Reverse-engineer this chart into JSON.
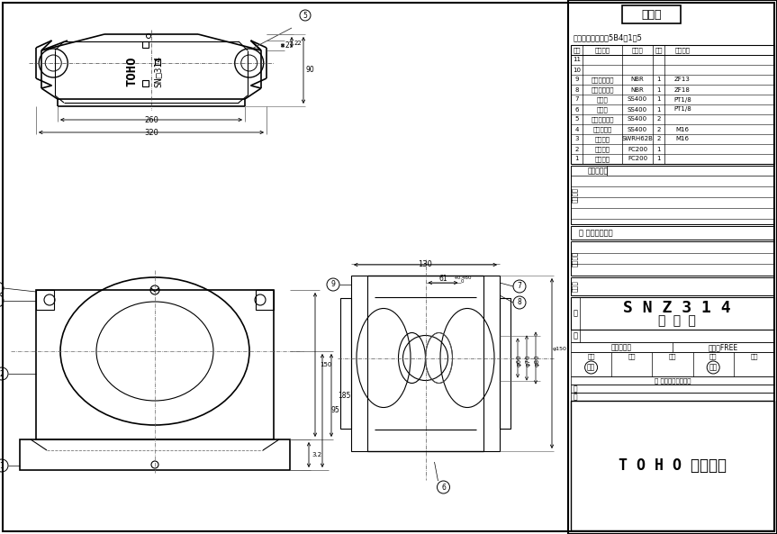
{
  "bg_color": "#ffffff",
  "line_color": "#000000",
  "ref_label": "参考図",
  "paint_color": "塗装色：マンセル5B4／1．5",
  "title_name": "SNZ314",
  "title_sub": "自由側",
  "company": "TOHO株式会社",
  "company_display": "T O H O 株式会社",
  "parts_rows": [
    [
      "11",
      "",
      "",
      "",
      ""
    ],
    [
      "10",
      "",
      "",
      "",
      ""
    ],
    [
      "9",
      "オイルシール",
      "NBR",
      "1",
      "ZF13"
    ],
    [
      "8",
      "オイルシール",
      "NBR",
      "1",
      "ZF18"
    ],
    [
      "7",
      "給油栅",
      "SS400",
      "1",
      "PT1/8"
    ],
    [
      "6",
      "排油栅",
      "SS400",
      "1",
      "PT1/8"
    ],
    [
      "5",
      "テーパーピン",
      "SS400",
      "2",
      ""
    ],
    [
      "4",
      "六角ボルト",
      "SS400",
      "2",
      "M16"
    ],
    [
      "3",
      "バネ座金",
      "SWRH62B",
      "2",
      "M16"
    ],
    [
      "2",
      "軸受台上",
      "FC200",
      "1",
      ""
    ],
    [
      "1",
      "軸受台下",
      "FC200",
      "1",
      ""
    ]
  ],
  "parts_header": [
    "符号",
    "部品名称",
    "材　質",
    "個数",
    "備　　考"
  ],
  "lube_note": "潤 潤：グリース",
  "stamp_labels": [
    "承認",
    "照査",
    "設計",
    "製図",
    "写図"
  ],
  "stamp1_name": "矢部",
  "stamp2_name": "谷口",
  "angle_method": "三　角　法",
  "scale_label": "尺度　FREE",
  "fig_label": "図",
  "num_label": "番",
  "name_label": "名",
  "grade_label": "格"
}
